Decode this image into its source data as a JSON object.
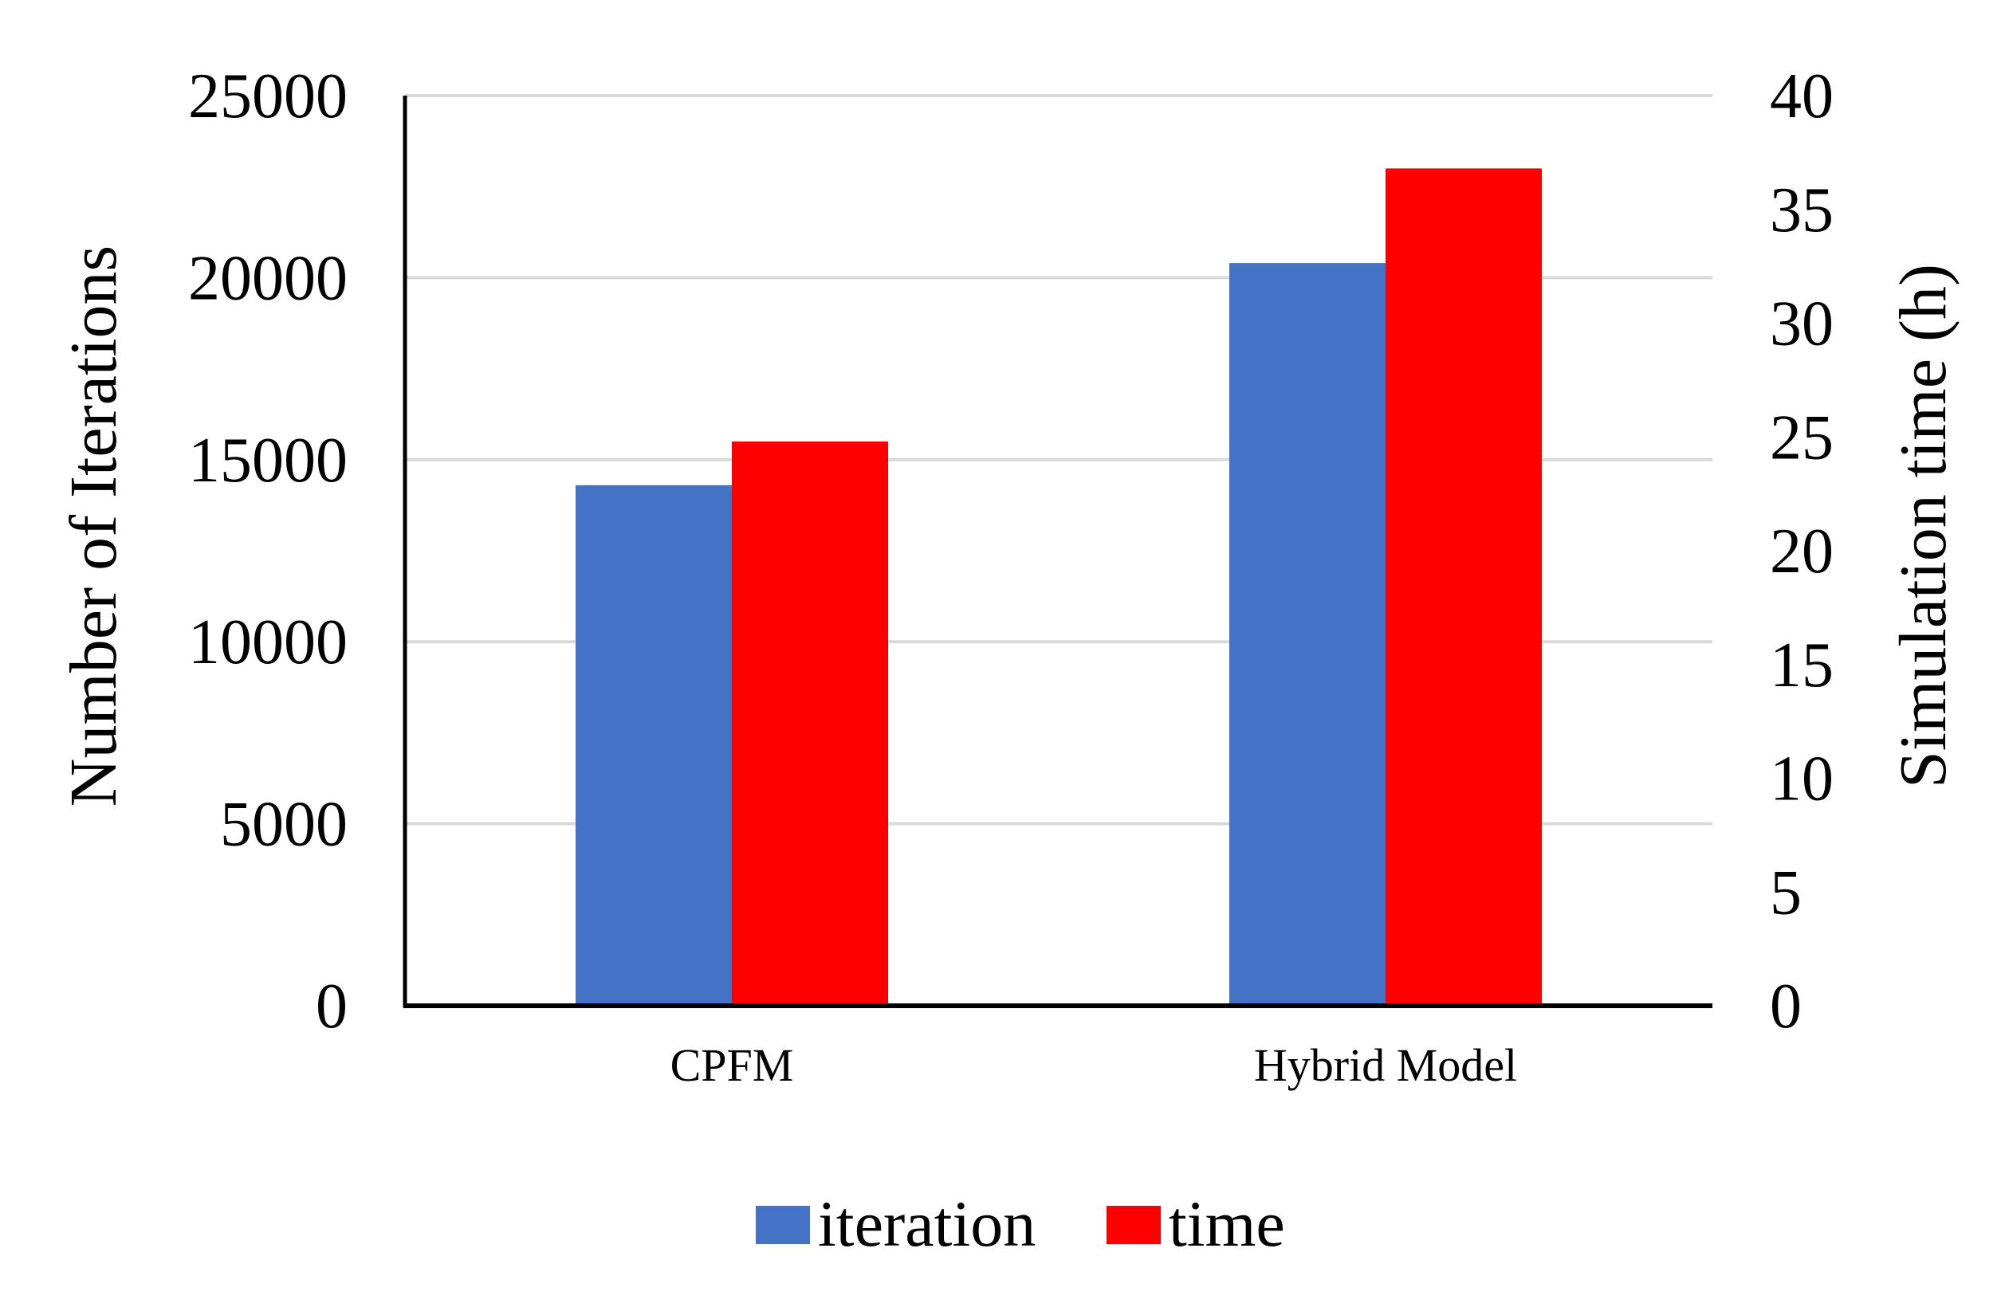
{
  "chart_data": {
    "type": "bar",
    "categories": [
      "CPFM",
      "Hybrid Model"
    ],
    "series": [
      {
        "name": "iteration",
        "axis": "left",
        "color": "#4472C4",
        "values": [
          14300,
          20400
        ]
      },
      {
        "name": "time",
        "axis": "right",
        "color": "#FF0000",
        "values": [
          24.8,
          36.8
        ]
      }
    ],
    "ylabel": "Number of Iterations",
    "ylim": [
      0,
      25000
    ],
    "yticks": [
      "0",
      "5000",
      "10000",
      "15000",
      "20000",
      "25000"
    ],
    "y2label": "Simulation time (h)",
    "y2lim": [
      0,
      40
    ],
    "y2ticks": [
      "0",
      "5",
      "10",
      "15",
      "20",
      "25",
      "30",
      "35",
      "40"
    ],
    "grid": true,
    "legend_position": "bottom"
  }
}
